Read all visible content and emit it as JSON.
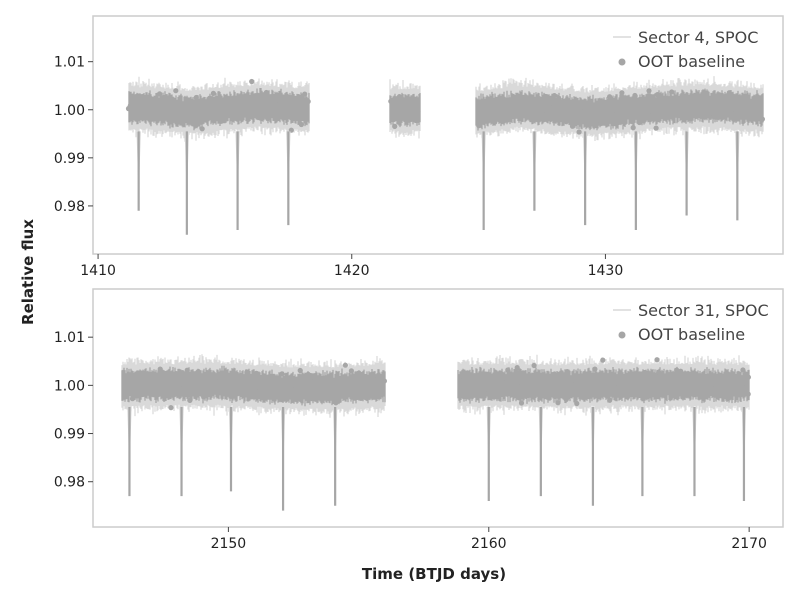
{
  "figure": {
    "ylabel": "Relative flux",
    "xlabel": "Time (BTJD days)"
  },
  "colors": {
    "frame": "#cccccc",
    "flux_line": "#d9d9d9",
    "baseline_points": "#a6a6a6",
    "text": "#222222"
  },
  "chart_data": [
    {
      "type": "scatter",
      "panel": "top",
      "xlim": [
        1409.8,
        1437.0
      ],
      "ylim": [
        0.97,
        1.0195
      ],
      "xticks": [
        1410,
        1420,
        1430
      ],
      "yticks": [
        0.98,
        0.99,
        1.0,
        1.01
      ],
      "ytick_labels": [
        "0.98",
        "0.99",
        "1.00",
        "1.01"
      ],
      "legend_position": "top-right",
      "legend": [
        {
          "label": "Sector 4, SPOC",
          "style": "line"
        },
        {
          "label": "OOT baseline",
          "style": "marker"
        }
      ],
      "data_segments": [
        {
          "x_start": 1411.2,
          "x_end": 1418.3
        },
        {
          "x_start": 1421.5,
          "x_end": 1422.7
        },
        {
          "x_start": 1424.9,
          "x_end": 1436.2
        }
      ],
      "baseline_trend": [
        [
          1411.2,
          1.0005
        ],
        [
          1412.5,
          1.0002
        ],
        [
          1413.7,
          0.9995
        ],
        [
          1415.0,
          1.0003
        ],
        [
          1416.5,
          1.0008
        ],
        [
          1418.3,
          1.0
        ],
        [
          1421.5,
          1.0
        ],
        [
          1422.7,
          1.0
        ],
        [
          1425.0,
          0.9995
        ],
        [
          1426.5,
          1.0007
        ],
        [
          1428.0,
          1.0
        ],
        [
          1429.5,
          0.9992
        ],
        [
          1431.0,
          1.0
        ],
        [
          1432.5,
          1.0006
        ],
        [
          1434.0,
          1.0008
        ],
        [
          1436.2,
          1.0
        ]
      ],
      "transits": [
        {
          "time": 1411.6,
          "min_flux": 0.979
        },
        {
          "time": 1413.5,
          "min_flux": 0.974
        },
        {
          "time": 1415.5,
          "min_flux": 0.975
        },
        {
          "time": 1417.5,
          "min_flux": 0.976
        },
        {
          "time": 1425.2,
          "min_flux": 0.975
        },
        {
          "time": 1427.2,
          "min_flux": 0.979
        },
        {
          "time": 1429.2,
          "min_flux": 0.976
        },
        {
          "time": 1431.2,
          "min_flux": 0.975
        },
        {
          "time": 1433.2,
          "min_flux": 0.978
        },
        {
          "time": 1435.2,
          "min_flux": 0.977
        }
      ]
    },
    {
      "type": "scatter",
      "panel": "bottom",
      "xlim": [
        2144.8,
        2171.3
      ],
      "ylim": [
        0.9706,
        1.02
      ],
      "xticks": [
        2150,
        2160,
        2170
      ],
      "yticks": [
        0.98,
        0.99,
        1.0,
        1.01
      ],
      "ytick_labels": [
        "0.98",
        "0.99",
        "1.00",
        "1.01"
      ],
      "legend_position": "top-right",
      "legend": [
        {
          "label": "Sector 31, SPOC",
          "style": "line"
        },
        {
          "label": "OOT baseline",
          "style": "marker"
        }
      ],
      "data_segments": [
        {
          "x_start": 2145.9,
          "x_end": 2156.0
        },
        {
          "x_start": 2158.8,
          "x_end": 2170.0
        }
      ],
      "baseline_trend": [
        [
          2145.9,
          1.0
        ],
        [
          2148.0,
          1.0002
        ],
        [
          2150.0,
          1.0002
        ],
        [
          2152.0,
          0.9995
        ],
        [
          2154.0,
          0.9995
        ],
        [
          2156.0,
          1.0
        ],
        [
          2158.8,
          1.0
        ],
        [
          2161.0,
          1.0001
        ],
        [
          2163.0,
          0.9999
        ],
        [
          2165.0,
          1.0001
        ],
        [
          2167.0,
          1.0001
        ],
        [
          2170.0,
          1.0
        ]
      ],
      "transits": [
        {
          "time": 2146.2,
          "min_flux": 0.977
        },
        {
          "time": 2148.2,
          "min_flux": 0.977
        },
        {
          "time": 2150.1,
          "min_flux": 0.978
        },
        {
          "time": 2152.1,
          "min_flux": 0.974
        },
        {
          "time": 2154.1,
          "min_flux": 0.975
        },
        {
          "time": 2160.0,
          "min_flux": 0.976
        },
        {
          "time": 2162.0,
          "min_flux": 0.977
        },
        {
          "time": 2164.0,
          "min_flux": 0.975
        },
        {
          "time": 2165.9,
          "min_flux": 0.977
        },
        {
          "time": 2167.9,
          "min_flux": 0.977
        },
        {
          "time": 2169.8,
          "min_flux": 0.976
        }
      ]
    }
  ]
}
